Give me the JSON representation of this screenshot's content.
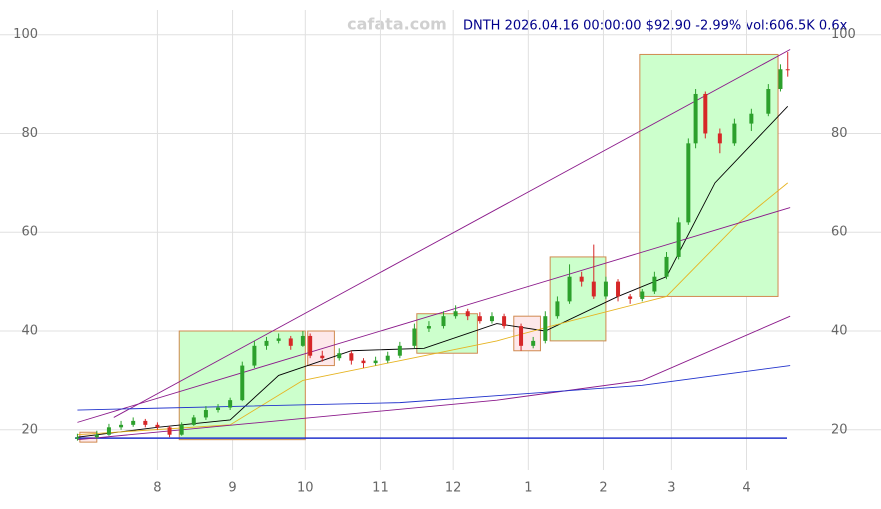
{
  "chart_data": {
    "type": "candlestick",
    "title": "DNTH 2026.04.16 00:00:00 $92.90 -2.99% vol:606.5K 0.6x",
    "watermark": "cafata.com",
    "xlim": [
      -34,
      263
    ],
    "ylim": [
      15.5,
      105
    ],
    "xticks": [
      {
        "value": 0,
        "label": "8"
      },
      {
        "value": 31,
        "label": "9"
      },
      {
        "value": 61,
        "label": "10"
      },
      {
        "value": 92,
        "label": "11"
      },
      {
        "value": 122,
        "label": "12"
      },
      {
        "value": 153,
        "label": "1"
      },
      {
        "value": 184,
        "label": "2"
      },
      {
        "value": 212,
        "label": "3"
      },
      {
        "value": 243,
        "label": "4"
      }
    ],
    "yticks": [
      20,
      40,
      60,
      80,
      100
    ],
    "grid": true,
    "up_color": "#2ca02c",
    "down_color": "#d62728",
    "candles": [
      [
        -33,
        18.2,
        19.2,
        17.8,
        18.5
      ],
      [
        -25,
        18.5,
        19.8,
        18.2,
        19.0
      ],
      [
        -20,
        19.0,
        21.2,
        18.8,
        20.5
      ],
      [
        -15,
        20.5,
        21.8,
        20.0,
        21.0
      ],
      [
        -10,
        21.0,
        22.5,
        20.6,
        21.8
      ],
      [
        -5,
        21.8,
        22.2,
        20.5,
        21.0
      ],
      [
        0,
        21.0,
        21.5,
        20.0,
        20.5
      ],
      [
        5,
        20.5,
        20.8,
        18.5,
        19.0
      ],
      [
        10,
        19.0,
        21.5,
        18.8,
        21.0
      ],
      [
        15,
        21.0,
        23.0,
        20.8,
        22.5
      ],
      [
        20,
        22.5,
        24.8,
        22.0,
        24.0
      ],
      [
        25,
        24.0,
        25.2,
        23.5,
        24.5
      ],
      [
        30,
        24.5,
        26.5,
        24.0,
        26.0
      ],
      [
        35,
        26.0,
        33.8,
        25.8,
        33.0
      ],
      [
        40,
        33.0,
        38.0,
        32.5,
        37.0
      ],
      [
        45,
        37.0,
        38.8,
        36.2,
        38.0
      ],
      [
        50,
        38.0,
        39.5,
        37.5,
        38.5
      ],
      [
        55,
        38.5,
        39.0,
        36.2,
        37.0
      ],
      [
        60,
        37.0,
        40.0,
        36.8,
        39.0
      ],
      [
        63,
        39.0,
        39.5,
        34.5,
        35.0
      ],
      [
        68,
        35.0,
        36.0,
        33.8,
        34.5
      ],
      [
        75,
        34.5,
        36.5,
        34.0,
        35.5
      ],
      [
        80,
        35.5,
        36.0,
        33.2,
        34.0
      ],
      [
        85,
        34.0,
        34.5,
        32.5,
        33.5
      ],
      [
        90,
        33.5,
        34.8,
        33.0,
        34.0
      ],
      [
        95,
        34.0,
        35.8,
        33.5,
        35.0
      ],
      [
        100,
        35.0,
        37.8,
        34.5,
        37.0
      ],
      [
        106,
        37.0,
        41.5,
        36.5,
        40.5
      ],
      [
        112,
        40.5,
        42.0,
        39.8,
        41.0
      ],
      [
        118,
        41.0,
        44.0,
        40.5,
        43.0
      ],
      [
        123,
        43.0,
        45.2,
        42.5,
        44.0
      ],
      [
        128,
        44.0,
        44.5,
        42.2,
        43.0
      ],
      [
        133,
        43.0,
        43.8,
        41.5,
        42.0
      ],
      [
        138,
        42.0,
        43.8,
        41.5,
        43.0
      ],
      [
        143,
        43.0,
        43.5,
        40.5,
        41.0
      ],
      [
        150,
        41.0,
        41.5,
        36.0,
        37.0
      ],
      [
        155,
        37.0,
        38.8,
        36.5,
        38.0
      ],
      [
        160,
        38.0,
        44.0,
        37.5,
        43.0
      ],
      [
        165,
        43.0,
        47.0,
        42.5,
        46.0
      ],
      [
        170,
        46.0,
        53.5,
        45.5,
        51.0
      ],
      [
        175,
        51.0,
        52.0,
        49.0,
        50.0
      ],
      [
        180,
        50.0,
        57.5,
        46.5,
        47.0
      ],
      [
        185,
        47.0,
        51.0,
        46.5,
        50.0
      ],
      [
        190,
        50.0,
        50.5,
        46.0,
        47.0
      ],
      [
        195,
        47.0,
        47.5,
        45.5,
        46.5
      ],
      [
        200,
        46.5,
        48.5,
        46.0,
        48.0
      ],
      [
        205,
        48.0,
        52.0,
        47.5,
        51.0
      ],
      [
        210,
        51.0,
        56.0,
        50.5,
        55.0
      ],
      [
        215,
        55.0,
        63.0,
        54.5,
        62.0
      ],
      [
        219,
        62.0,
        79.0,
        61.5,
        78.0
      ],
      [
        222,
        78.0,
        89.0,
        77.0,
        88.0
      ],
      [
        226,
        88.0,
        88.5,
        79.0,
        80.0
      ],
      [
        232,
        80.0,
        81.0,
        76.0,
        78.0
      ],
      [
        238,
        78.0,
        83.0,
        77.5,
        82.0
      ],
      [
        245,
        82.0,
        85.0,
        80.5,
        84.0
      ],
      [
        252,
        84.0,
        90.0,
        83.5,
        89.0
      ],
      [
        257,
        89.0,
        94.0,
        88.5,
        93.0
      ],
      [
        260,
        93.0,
        96.5,
        91.5,
        92.9
      ]
    ],
    "boxes": [
      {
        "x0": 9,
        "x1": 61,
        "low": 18,
        "high": 40,
        "color": "#ccffcc"
      },
      {
        "x0": 107,
        "x1": 132,
        "low": 35.5,
        "high": 43.5,
        "color": "#ccffcc"
      },
      {
        "x0": 162,
        "x1": 185,
        "low": 38,
        "high": 55,
        "color": "#ccffcc"
      },
      {
        "x0": 199,
        "x1": 256,
        "low": 47,
        "high": 96,
        "color": "#ccffcc"
      },
      {
        "x0": 62,
        "x1": 73,
        "low": 33,
        "high": 40,
        "color": "#fde8ea"
      },
      {
        "x0": 147,
        "x1": 158,
        "low": 36,
        "high": 43,
        "color": "#fde8ea"
      },
      {
        "x0": -32,
        "x1": -25,
        "low": 17.5,
        "high": 19.5,
        "color": "#fde8ea"
      }
    ],
    "lines": [
      {
        "color": "#000000",
        "x": [
          -33,
          0,
          30,
          50,
          80,
          110,
          140,
          160,
          190,
          210,
          230,
          260
        ],
        "values": [
          18.5,
          20.5,
          22,
          31,
          36,
          36.5,
          41.5,
          40,
          47,
          51,
          70,
          85.5
        ]
      },
      {
        "color": "#e6b422",
        "x": [
          -33,
          30,
          60,
          100,
          140,
          170,
          210,
          240,
          260
        ],
        "values": [
          19,
          21,
          30,
          34,
          38,
          42,
          47,
          62,
          70
        ]
      },
      {
        "color": "#8b1a8b",
        "x": [
          -18,
          261
        ],
        "values": [
          22.5,
          97
        ]
      },
      {
        "color": "#8b1a8b",
        "x": [
          -33,
          261
        ],
        "values": [
          21.5,
          65
        ]
      },
      {
        "color": "#8b1a8b",
        "x": [
          -33,
          140,
          200,
          261
        ],
        "values": [
          18,
          26,
          30,
          43
        ]
      },
      {
        "color": "#2233cc",
        "x": [
          -33,
          100,
          200,
          261
        ],
        "values": [
          24,
          25.5,
          29,
          33
        ]
      }
    ],
    "baseline": {
      "value": 18.3,
      "color": "#2233cc"
    }
  }
}
